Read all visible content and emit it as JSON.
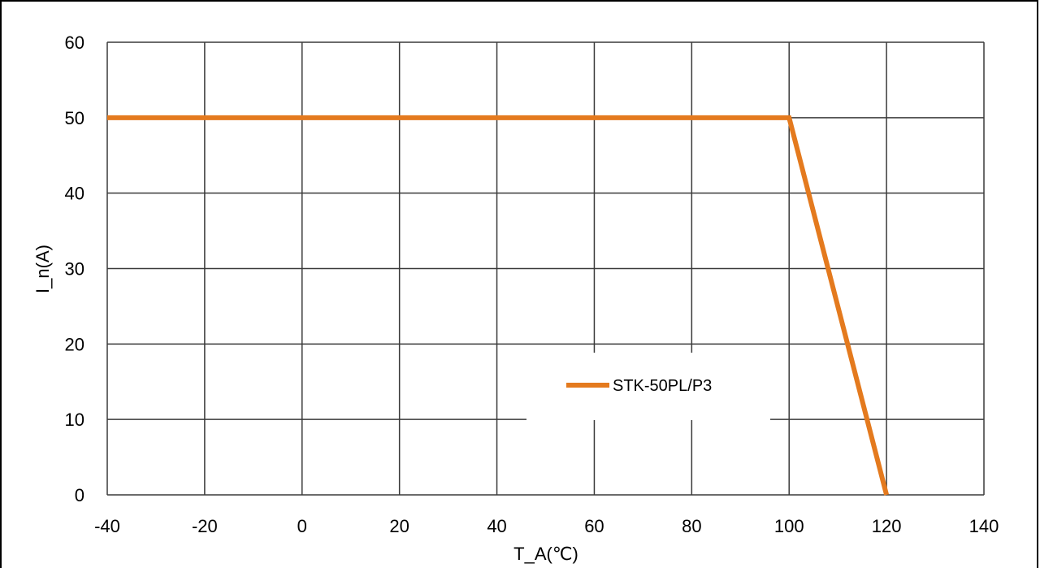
{
  "chart_data": {
    "type": "line",
    "title": "",
    "xlabel": "T_A(℃)",
    "ylabel": "I_n(A)",
    "xlim": [
      -40,
      140
    ],
    "ylim": [
      0,
      60
    ],
    "xticks": [
      -40,
      -20,
      0,
      20,
      40,
      60,
      80,
      100,
      120,
      140
    ],
    "yticks": [
      0,
      10,
      20,
      30,
      40,
      50,
      60
    ],
    "xtick_labels": [
      "-40",
      "-20",
      "0",
      "20",
      "40",
      "60",
      "80",
      "100",
      "120",
      "140"
    ],
    "ytick_labels": [
      "0",
      "10",
      "20",
      "30",
      "40",
      "50",
      "60"
    ],
    "grid": true,
    "legend_position": "center-right",
    "series": [
      {
        "name": "STK-50PL/P3",
        "color": "#E47A1E",
        "x": [
          -40,
          100,
          120
        ],
        "y": [
          50,
          50,
          0
        ]
      }
    ]
  }
}
